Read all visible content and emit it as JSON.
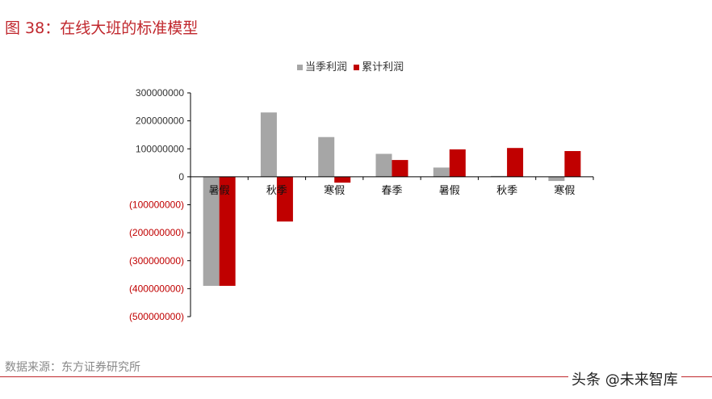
{
  "title": "图 38：在线大班的标准模型",
  "source": "数据来源：东方证券研究所",
  "watermark": "头条 @未来智库",
  "chart_data": {
    "type": "bar",
    "title": "",
    "categories": [
      "暑假",
      "秋季",
      "寒假",
      "春季",
      "暑假",
      "秋季",
      "寒假"
    ],
    "series": [
      {
        "name": "当季利润",
        "color": "#a6a6a6",
        "values": [
          -390000000,
          230000000,
          142000000,
          82000000,
          33000000,
          3000000,
          -15000000
        ]
      },
      {
        "name": "累计利润",
        "color": "#c00000",
        "values": [
          -390000000,
          -160000000,
          -21000000,
          60000000,
          98000000,
          103000000,
          92000000
        ]
      }
    ],
    "ylim": [
      -500000000,
      300000000
    ],
    "yticks": [
      300000000,
      200000000,
      100000000,
      0,
      -100000000,
      -200000000,
      -300000000,
      -400000000,
      -500000000
    ],
    "ytick_labels": [
      "300000000",
      "200000000",
      "100000000",
      "0",
      "(100000000)",
      "(200000000)",
      "(300000000)",
      "(400000000)",
      "(500000000)"
    ],
    "negative_label_color": "#c00000",
    "legend": "top",
    "grid": false
  }
}
